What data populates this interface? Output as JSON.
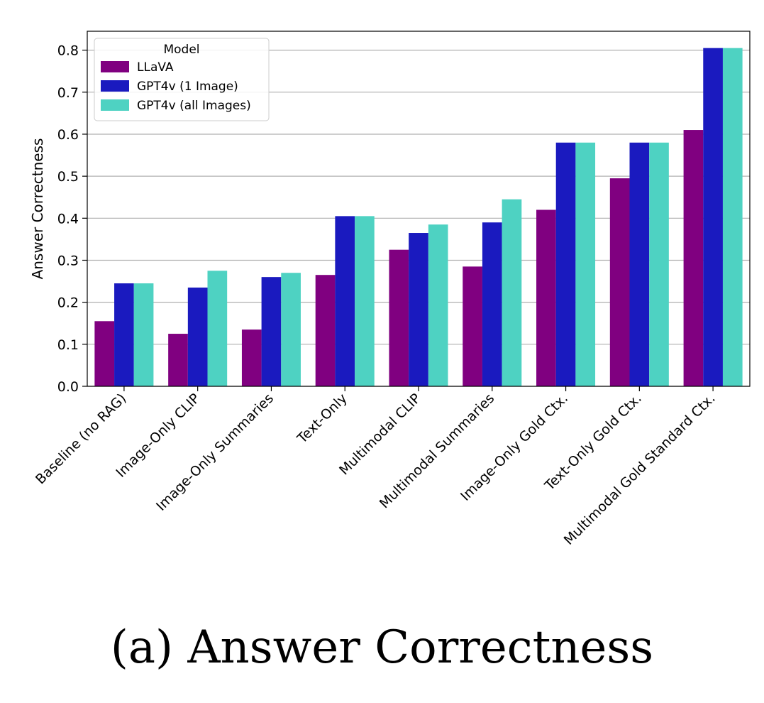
{
  "caption": "(a) Answer Correctness",
  "chart_data": {
    "type": "bar",
    "title": "",
    "xlabel": "",
    "ylabel": "Answer Correctness",
    "ylim": [
      0,
      0.845
    ],
    "yticks": [
      "0.0",
      "0.1",
      "0.2",
      "0.3",
      "0.4",
      "0.5",
      "0.6",
      "0.7",
      "0.8"
    ],
    "grid": "horizontal",
    "legend": {
      "title": "Model",
      "placement": "top-left"
    },
    "categories": [
      "Baseline (no RAG)",
      "Image-Only CLIP",
      "Image-Only Summaries",
      "Text-Only",
      "Multimodal CLIP",
      "Multimodal Summaries",
      "Image-Only Gold Ctx.",
      "Text-Only Gold Ctx.",
      "Multimodal Gold Standard Ctx."
    ],
    "series": [
      {
        "name": "LLaVA",
        "color": "#800080",
        "values": [
          0.155,
          0.125,
          0.135,
          0.265,
          0.325,
          0.285,
          0.42,
          0.495,
          0.61
        ]
      },
      {
        "name": "GPT4v (1 Image)",
        "color": "#1a1abf",
        "values": [
          0.245,
          0.235,
          0.26,
          0.405,
          0.365,
          0.39,
          0.58,
          0.58,
          0.805
        ]
      },
      {
        "name": "GPT4v (all Images)",
        "color": "#4ed2c2",
        "values": [
          0.245,
          0.275,
          0.27,
          0.405,
          0.385,
          0.445,
          0.58,
          0.58,
          0.805
        ]
      }
    ]
  }
}
